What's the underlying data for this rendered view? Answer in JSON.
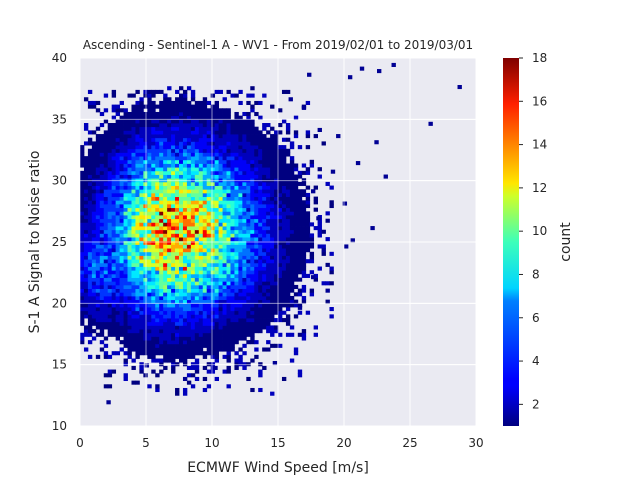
{
  "chart_data": {
    "type": "heatmap",
    "title": "Ascending - Sentinel-1 A - WV1 - From 2019/02/01 to 2019/03/01",
    "xlabel": "ECMWF Wind Speed [m/s]",
    "ylabel": "S-1 A Signal to Noise ratio",
    "xlim": [
      0,
      30
    ],
    "ylim": [
      10,
      40
    ],
    "xticks": [
      "0",
      "5",
      "10",
      "15",
      "20",
      "25",
      "30"
    ],
    "yticks": [
      "10",
      "15",
      "20",
      "25",
      "30",
      "35",
      "40"
    ],
    "colorbar": {
      "label": "count",
      "range": [
        1,
        18
      ],
      "ticks": [
        "2",
        "4",
        "6",
        "8",
        "10",
        "12",
        "14",
        "16",
        "18"
      ],
      "colormap": "jet"
    },
    "grid": true,
    "bin_size": [
      0.3,
      0.3
    ],
    "density_model": {
      "peak_count": 17,
      "core_center": [
        7,
        26
      ],
      "note_visible": "2D histogram of counts; densest region around wind 5-9 m/s, SNR 23-29"
    },
    "outliers": [
      [
        2.0,
        11.8
      ],
      [
        23.6,
        39.3
      ],
      [
        28.6,
        37.5
      ],
      [
        26.4,
        34.5
      ],
      [
        23.0,
        30.2
      ],
      [
        22.0,
        26.0
      ],
      [
        20.5,
        25.0
      ],
      [
        20.0,
        24.5
      ],
      [
        21.2,
        39.0
      ],
      [
        20.3,
        38.3
      ],
      [
        17.2,
        38.5
      ],
      [
        22.5,
        38.8
      ],
      [
        16.8,
        35.8
      ],
      [
        18.0,
        34.0
      ],
      [
        22.3,
        33.0
      ],
      [
        20.9,
        31.3
      ],
      [
        17.5,
        29.0
      ],
      [
        19.9,
        28.0
      ],
      [
        17.9,
        26.8
      ],
      [
        18.6,
        20.9
      ],
      [
        17.5,
        22.0
      ],
      [
        14.6,
        15.0
      ],
      [
        10.1,
        14.6
      ],
      [
        7.8,
        13.7
      ],
      [
        4.9,
        14.8
      ],
      [
        15.8,
        36.5
      ],
      [
        19.4,
        33.5
      ],
      [
        19.0,
        30.6
      ],
      [
        18.3,
        24.2
      ],
      [
        16.5,
        19.5
      ]
    ]
  },
  "colors": {
    "axes_background": "#eaeaf2",
    "grid": "#ffffff",
    "text": "#262626"
  }
}
